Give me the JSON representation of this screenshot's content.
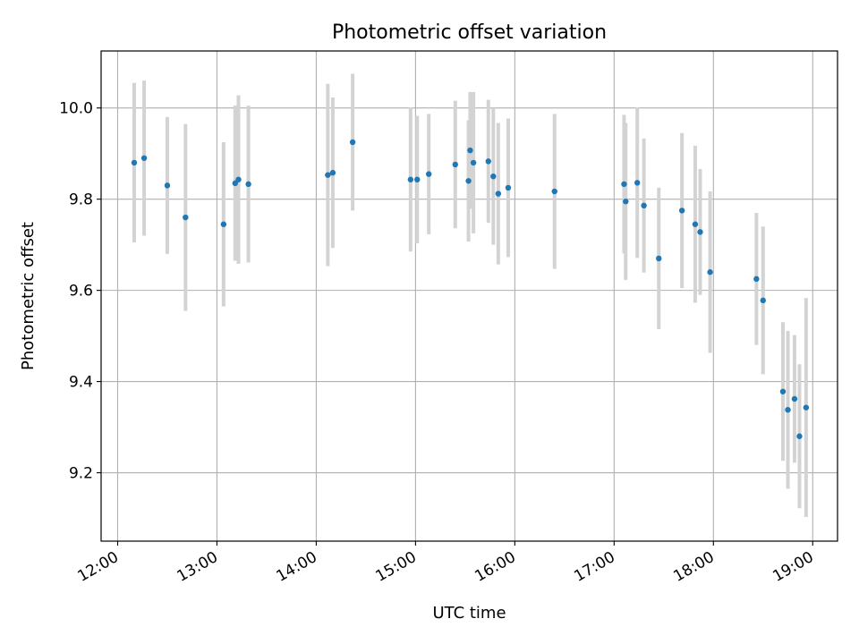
{
  "chart_data": {
    "type": "scatter",
    "title": "Photometric offset variation",
    "xlabel": "UTC time",
    "ylabel": "Photometric offset",
    "xlim": [
      "11:50",
      "19:15"
    ],
    "ylim": [
      9.05,
      10.125
    ],
    "grid": true,
    "x_ticks": [
      "12:00",
      "13:00",
      "14:00",
      "15:00",
      "16:00",
      "17:00",
      "18:00",
      "19:00"
    ],
    "y_ticks": [
      "9.2",
      "9.4",
      "9.6",
      "9.8",
      "10.0"
    ],
    "series": [
      {
        "marker_color": "#1f77b4",
        "errorbar_color": "#d3d3d3",
        "points": [
          {
            "x": "12:10",
            "y": 9.88,
            "err": 0.175
          },
          {
            "x": "12:16",
            "y": 9.89,
            "err": 0.17
          },
          {
            "x": "12:30",
            "y": 9.83,
            "err": 0.15
          },
          {
            "x": "12:41",
            "y": 9.76,
            "err": 0.205
          },
          {
            "x": "13:04",
            "y": 9.745,
            "err": 0.18
          },
          {
            "x": "13:11",
            "y": 9.835,
            "err": 0.17
          },
          {
            "x": "13:13",
            "y": 9.843,
            "err": 0.185
          },
          {
            "x": "13:19",
            "y": 9.833,
            "err": 0.172
          },
          {
            "x": "14:07",
            "y": 9.853,
            "err": 0.2
          },
          {
            "x": "14:10",
            "y": 9.858,
            "err": 0.165
          },
          {
            "x": "14:22",
            "y": 9.925,
            "err": 0.15
          },
          {
            "x": "14:57",
            "y": 9.843,
            "err": 0.158
          },
          {
            "x": "15:01",
            "y": 9.843,
            "err": 0.14
          },
          {
            "x": "15:08",
            "y": 9.855,
            "err": 0.132
          },
          {
            "x": "15:24",
            "y": 9.876,
            "err": 0.14
          },
          {
            "x": "15:32",
            "y": 9.84,
            "err": 0.133
          },
          {
            "x": "15:33",
            "y": 9.907,
            "err": 0.128
          },
          {
            "x": "15:35",
            "y": 9.88,
            "err": 0.155
          },
          {
            "x": "15:44",
            "y": 9.883,
            "err": 0.135
          },
          {
            "x": "15:47",
            "y": 9.85,
            "err": 0.15
          },
          {
            "x": "15:50",
            "y": 9.812,
            "err": 0.155
          },
          {
            "x": "15:56",
            "y": 9.825,
            "err": 0.152
          },
          {
            "x": "16:24",
            "y": 9.817,
            "err": 0.17
          },
          {
            "x": "17:06",
            "y": 9.833,
            "err": 0.152
          },
          {
            "x": "17:07",
            "y": 9.795,
            "err": 0.172
          },
          {
            "x": "17:14",
            "y": 9.836,
            "err": 0.165
          },
          {
            "x": "17:18",
            "y": 9.786,
            "err": 0.147
          },
          {
            "x": "17:27",
            "y": 9.67,
            "err": 0.155
          },
          {
            "x": "17:41",
            "y": 9.775,
            "err": 0.17
          },
          {
            "x": "17:49",
            "y": 9.745,
            "err": 0.172
          },
          {
            "x": "17:52",
            "y": 9.728,
            "err": 0.138
          },
          {
            "x": "17:58",
            "y": 9.64,
            "err": 0.177
          },
          {
            "x": "18:26",
            "y": 9.625,
            "err": 0.145
          },
          {
            "x": "18:30",
            "y": 9.578,
            "err": 0.162
          },
          {
            "x": "18:42",
            "y": 9.378,
            "err": 0.152
          },
          {
            "x": "18:45",
            "y": 9.338,
            "err": 0.173
          },
          {
            "x": "18:49",
            "y": 9.362,
            "err": 0.14
          },
          {
            "x": "18:52",
            "y": 9.28,
            "err": 0.158
          },
          {
            "x": "18:56",
            "y": 9.343,
            "err": 0.24
          }
        ]
      }
    ]
  }
}
